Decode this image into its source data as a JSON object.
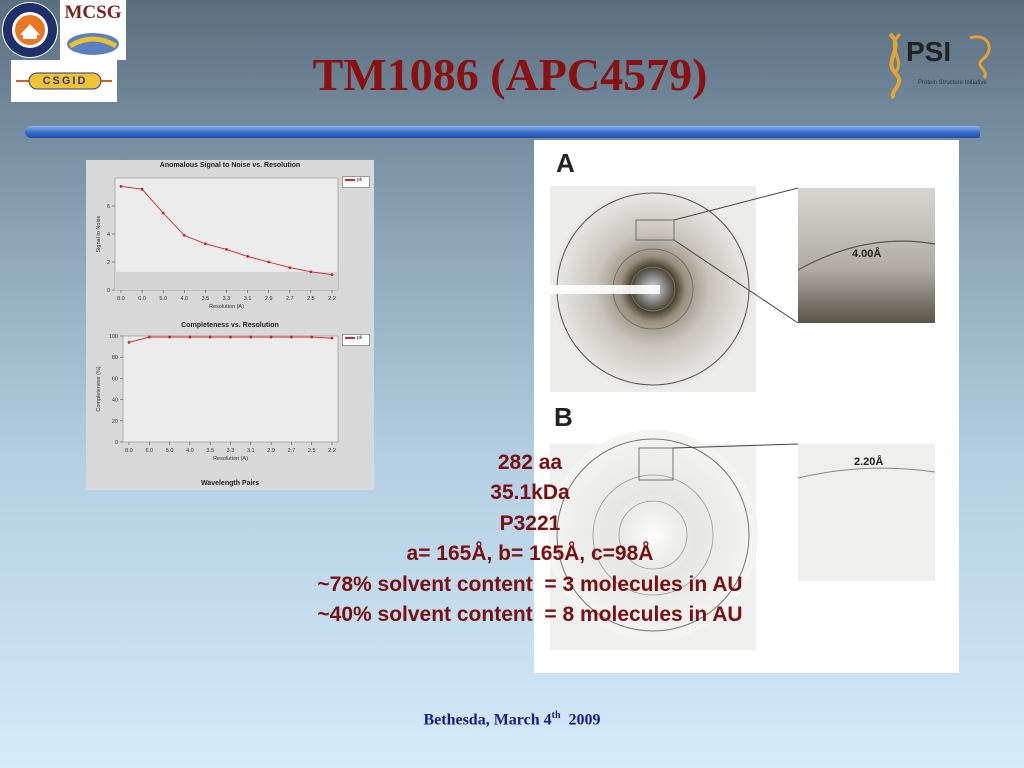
{
  "slide": {
    "title": "TM1086 (APC4579)",
    "footer_text": "Bethesda, March 4",
    "footer_sup": "th",
    "footer_year": "  2009"
  },
  "logos": {
    "uva_lettering": "UNIVERSITY OF VIRGINIA",
    "mcsg": "MCSG",
    "csgid": "CSGID",
    "psi": "PSI",
    "psi_sub": "Protein Structure Initiative"
  },
  "protein_info": {
    "lines": [
      "282 aa",
      "35.1kDa",
      "P3221",
      "a= 165Å, b= 165Å, c=98Å",
      "~78% solvent content  = 3 molecules in AU",
      "~40% solvent content  = 8 molecules in AU"
    ]
  },
  "diffraction": {
    "label_a": "A",
    "label_b": "B",
    "zoom_a": "4.00Å",
    "zoom_b": "2.20Å"
  },
  "chart_data": [
    {
      "type": "line",
      "title": "Anomalous Signal to Noise vs. Resolution",
      "xlabel": "Resolution (A)",
      "ylabel": "Signal to Noise",
      "categories": [
        "8.0",
        "6.0",
        "5.0",
        "4.0",
        "3.5",
        "3.3",
        "3.1",
        "2.9",
        "2.7",
        "2.5",
        "2.2"
      ],
      "series": [
        {
          "name": "pk",
          "values": [
            7.4,
            7.2,
            5.5,
            3.9,
            3.3,
            2.9,
            2.4,
            2.0,
            1.6,
            1.3,
            1.1
          ]
        }
      ],
      "ylim": [
        0,
        8
      ],
      "yticks": [
        "0",
        "2",
        "4",
        "6"
      ],
      "threshold": 1.3,
      "color": "#d22222"
    },
    {
      "type": "line",
      "title": "Completeness vs. Resolution",
      "xlabel": "Resolution (A)",
      "ylabel": "Completeness (%)",
      "categories": [
        "8.0",
        "6.0",
        "5.0",
        "4.0",
        "3.5",
        "3.3",
        "3.1",
        "2.9",
        "2.7",
        "2.5",
        "2.2"
      ],
      "series": [
        {
          "name": "pk",
          "values": [
            94,
            99,
            99,
            99,
            99,
            99,
            99,
            99,
            99,
            99,
            98
          ]
        }
      ],
      "ylim": [
        0,
        100
      ],
      "yticks": [
        "0",
        "20",
        "40",
        "60",
        "80",
        "100"
      ],
      "footer": "Wavelength Pairs",
      "color": "#d22222"
    }
  ]
}
